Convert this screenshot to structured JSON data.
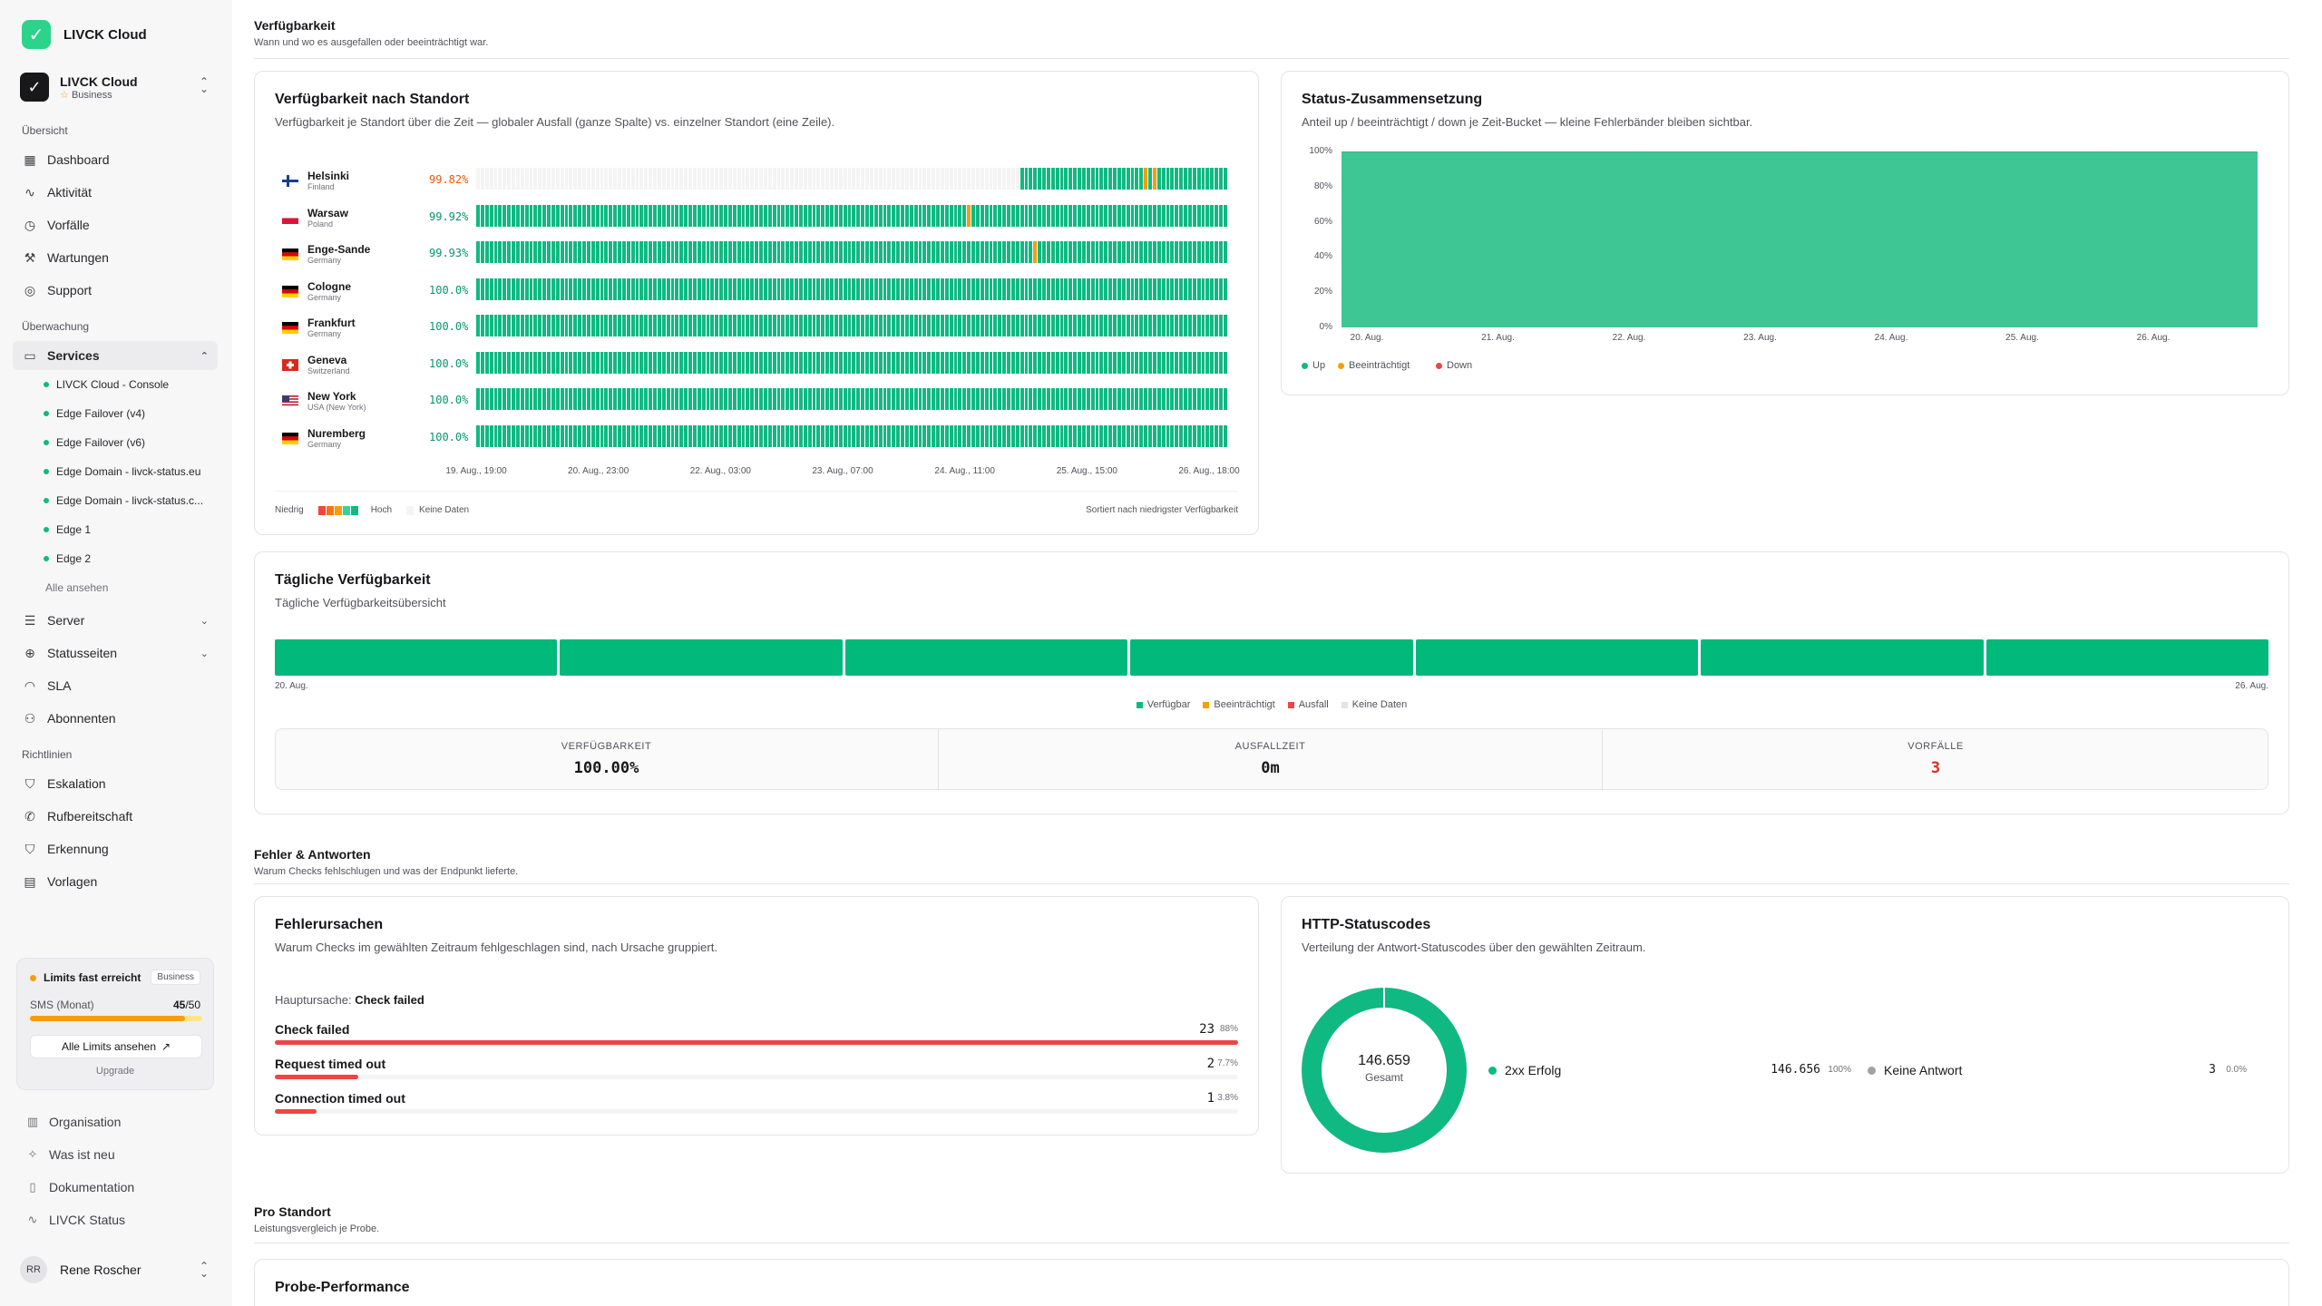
{
  "app": {
    "name": "LIVCK Cloud"
  },
  "workspace": {
    "name": "LIVCK Cloud",
    "plan": "Business"
  },
  "nav": {
    "section_overview": "Übersicht",
    "dashboard": "Dashboard",
    "activity": "Aktivität",
    "incidents": "Vorfälle",
    "maintenance": "Wartungen",
    "support": "Support",
    "section_monitoring": "Überwachung",
    "services": "Services",
    "service_items": [
      "LIVCK Cloud - Console",
      "Edge Failover (v4)",
      "Edge Failover (v6)",
      "Edge Domain - livck-status.eu",
      "Edge Domain - livck-status.c...",
      "Edge 1",
      "Edge 2"
    ],
    "show_all": "Alle ansehen",
    "server": "Server",
    "status_pages": "Statusseiten",
    "sla": "SLA",
    "subscribers": "Abonnenten",
    "section_policies": "Richtlinien",
    "escalation": "Eskalation",
    "on_call": "Rufbereitschaft",
    "detection": "Erkennung",
    "templates": "Vorlagen"
  },
  "limits": {
    "title": "Limits fast erreicht",
    "badge": "Business",
    "sms_label": "SMS (Monat)",
    "sms_used": "45",
    "sms_total": "/50",
    "sms_fraction": 0.9,
    "view_all": "Alle Limits ansehen",
    "upgrade": "Upgrade"
  },
  "footer": {
    "organisation": "Organisation",
    "whats_new": "Was ist neu",
    "docs": "Dokumentation",
    "status": "LIVCK Status",
    "user_initials": "RR",
    "user_name": "Rene Roscher"
  },
  "availability_section": {
    "title": "Verfügbarkeit",
    "subtitle": "Wann und wo es ausgefallen oder beeinträchtigt war."
  },
  "by_location": {
    "title": "Verfügbarkeit nach Standort",
    "subtitle": "Verfügbarkeit je Standort über die Zeit — globaler Ausfall (ganze Spalte) vs. einzelner Standort (eine Zeile).",
    "rows": [
      {
        "city": "Helsinki",
        "country": "Finland",
        "pct": "99.82%",
        "pct_color": "#ea580c",
        "flag": "fi",
        "empty_until": 0.72,
        "warn_at": [
          0.89,
          0.9
        ]
      },
      {
        "city": "Warsaw",
        "country": "Poland",
        "pct": "99.92%",
        "pct_color": "#059669",
        "flag": "pl",
        "empty_until": 0,
        "warn_at": [
          0.65
        ]
      },
      {
        "city": "Enge-Sande",
        "country": "Germany",
        "pct": "99.93%",
        "pct_color": "#059669",
        "flag": "de",
        "empty_until": 0,
        "warn_at": [
          0.74
        ]
      },
      {
        "city": "Cologne",
        "country": "Germany",
        "pct": "100.0%",
        "pct_color": "#059669",
        "flag": "de",
        "empty_until": 0,
        "warn_at": []
      },
      {
        "city": "Frankfurt",
        "country": "Germany",
        "pct": "100.0%",
        "pct_color": "#059669",
        "flag": "de",
        "empty_until": 0,
        "warn_at": []
      },
      {
        "city": "Geneva",
        "country": "Switzerland",
        "pct": "100.0%",
        "pct_color": "#059669",
        "flag": "ch",
        "empty_until": 0,
        "warn_at": []
      },
      {
        "city": "New York",
        "country": "USA (New York)",
        "pct": "100.0%",
        "pct_color": "#059669",
        "flag": "us",
        "empty_until": 0,
        "warn_at": []
      },
      {
        "city": "Nuremberg",
        "country": "Germany",
        "pct": "100.0%",
        "pct_color": "#059669",
        "flag": "de",
        "empty_until": 0,
        "warn_at": []
      }
    ],
    "x_ticks": [
      "19. Aug., 19:00",
      "20. Aug., 23:00",
      "22. Aug., 03:00",
      "23. Aug., 07:00",
      "24. Aug., 11:00",
      "25. Aug., 15:00",
      "26. Aug., 18:00"
    ],
    "legend_low": "Niedrig",
    "legend_high": "Hoch",
    "legend_nodata": "Keine Daten",
    "sort_note": "Sortiert nach niedrigster Verfügbarkeit"
  },
  "status_composition": {
    "title": "Status-Zusammensetzung",
    "subtitle": "Anteil up / beeinträchtigt / down je Zeit-Bucket — kleine Fehlerbänder bleiben sichtbar.",
    "legend": {
      "up": "Up",
      "degraded": "Beeinträchtigt",
      "down": "Down"
    }
  },
  "chart_data": {
    "type": "area",
    "title": "Status-Zusammensetzung",
    "x": [
      "20. Aug.",
      "21. Aug.",
      "22. Aug.",
      "23. Aug.",
      "24. Aug.",
      "25. Aug.",
      "26. Aug."
    ],
    "y_ticks": [
      "100%",
      "80%",
      "60%",
      "40%",
      "20%",
      "0%"
    ],
    "ylim": [
      0,
      100
    ],
    "series": [
      {
        "name": "Up",
        "color": "#3ec795",
        "values": [
          100,
          100,
          100,
          100,
          100,
          100,
          100
        ]
      },
      {
        "name": "Beeinträchtigt",
        "color": "#f59e0b",
        "values": [
          0,
          0,
          0,
          0,
          0,
          0,
          0
        ]
      },
      {
        "name": "Down",
        "color": "#ef4444",
        "values": [
          0,
          0,
          0,
          0,
          0,
          0,
          0
        ]
      }
    ],
    "legend_position": "bottom-left"
  },
  "daily": {
    "title": "Tägliche Verfügbarkeit",
    "subtitle": "Tägliche Verfügbarkeitsübersicht",
    "start": "20. Aug.",
    "end": "26. Aug.",
    "day_count": 7,
    "legend": {
      "available": "Verfügbar",
      "degraded": "Beeinträchtigt",
      "outage": "Ausfall",
      "nodata": "Keine Daten"
    },
    "stats": {
      "availability_label": "VERFÜGBARKEIT",
      "availability": "100.00%",
      "downtime_label": "AUSFALLZEIT",
      "downtime": "0m",
      "incidents_label": "VORFÄLLE",
      "incidents": "3"
    }
  },
  "errors_section": {
    "title": "Fehler & Antworten",
    "subtitle": "Warum Checks fehlschlugen und was der Endpunkt lieferte."
  },
  "causes": {
    "title": "Fehlerursachen",
    "subtitle": "Warum Checks im gewählten Zeitraum fehlgeschlagen sind, nach Ursache gruppiert.",
    "main_label": "Hauptursache:",
    "main_value": "Check failed",
    "items": [
      {
        "name": "Check failed",
        "count": "23",
        "pct": "88%",
        "fraction": 1.0
      },
      {
        "name": "Request timed out",
        "count": "2",
        "pct": "7.7%",
        "fraction": 0.087
      },
      {
        "name": "Connection timed out",
        "count": "1",
        "pct": "3.8%",
        "fraction": 0.043
      }
    ]
  },
  "http": {
    "title": "HTTP-Statuscodes",
    "subtitle": "Verteilung der Antwort-Statuscodes über den gewählten Zeitraum.",
    "total": "146.659",
    "total_label": "Gesamt",
    "items": [
      {
        "name": "2xx Erfolg",
        "count": "146.656",
        "pct": "100%",
        "color": "#10b981"
      },
      {
        "name": "Keine Antwort",
        "count": "3",
        "pct": "0.0%",
        "color": "#a1a1aa"
      }
    ]
  },
  "per_location": {
    "title": "Pro Standort",
    "subtitle": "Leistungsvergleich je Probe.",
    "card_title": "Probe-Performance"
  }
}
